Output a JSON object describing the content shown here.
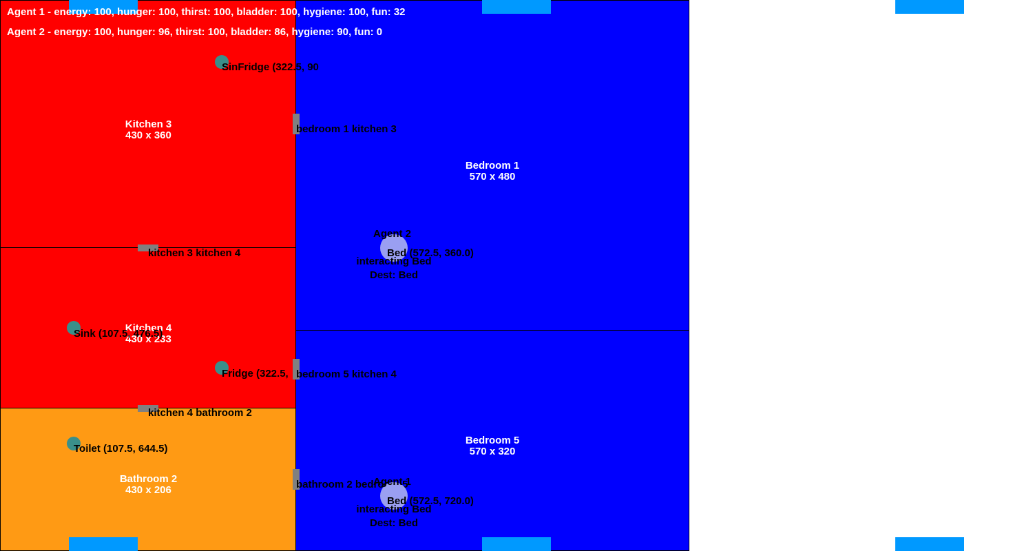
{
  "status": {
    "agent1": "Agent 1 - energy: 100, hunger: 100, thirst: 100, bladder: 100, hygiene: 100, fun: 32",
    "agent2": "Agent 2 - energy: 100, hunger: 96, thirst: 100, bladder: 86, hygiene: 90, fun: 0"
  },
  "rooms": {
    "kitchen3": {
      "name": "Kitchen 3",
      "size": "430 x 360",
      "color": "#ff0000"
    },
    "kitchen4": {
      "name": "Kitchen 4",
      "size": "430 x 233",
      "color": "#ff0000"
    },
    "bathroom2": {
      "name": "Bathroom 2",
      "size": "430 x 206",
      "color": "#ff9a14"
    },
    "bedroom1": {
      "name": "Bedroom 1",
      "size": "570 x 480",
      "color": "#0000ff"
    },
    "bedroom5": {
      "name": "Bedroom 5",
      "size": "570 x 320",
      "color": "#0000ff"
    }
  },
  "doors": {
    "bedroom1_kitchen3": "bedroom 1 kitchen 3",
    "kitchen3_kitchen4": "kitchen 3 kitchen 4",
    "bedroom5_kitchen4": "bedroom 5 kitchen 4",
    "kitchen4_bathroom2": "kitchen 4 bathroom 2",
    "bathroom2_bedroom5": "bathroom 2 bedroom 5"
  },
  "objects": {
    "kitchen3_overlap": "SinFridge (322.5, 90",
    "kitchen4_sink": "Sink (107.5, 476.5)",
    "kitchen4_fridge": "Fridge (322.5,",
    "bathroom2_overlap": "Toilet (107.5, 644.5)"
  },
  "agents": {
    "agent2": {
      "name": "Agent 2",
      "pos": "Bed (572.5, 360.0)",
      "action": "interacting Bed",
      "dest": "Dest: Bed"
    },
    "agent1": {
      "name": "Agent 1",
      "pos": "Bed (572.5, 720.0)",
      "action": "interacting Bed",
      "dest": "Dest: Bed"
    }
  },
  "colors": {
    "door": "#808080",
    "object": "#3a8f8a",
    "agent": "#9a9ff2",
    "marker": "#0099ff"
  }
}
